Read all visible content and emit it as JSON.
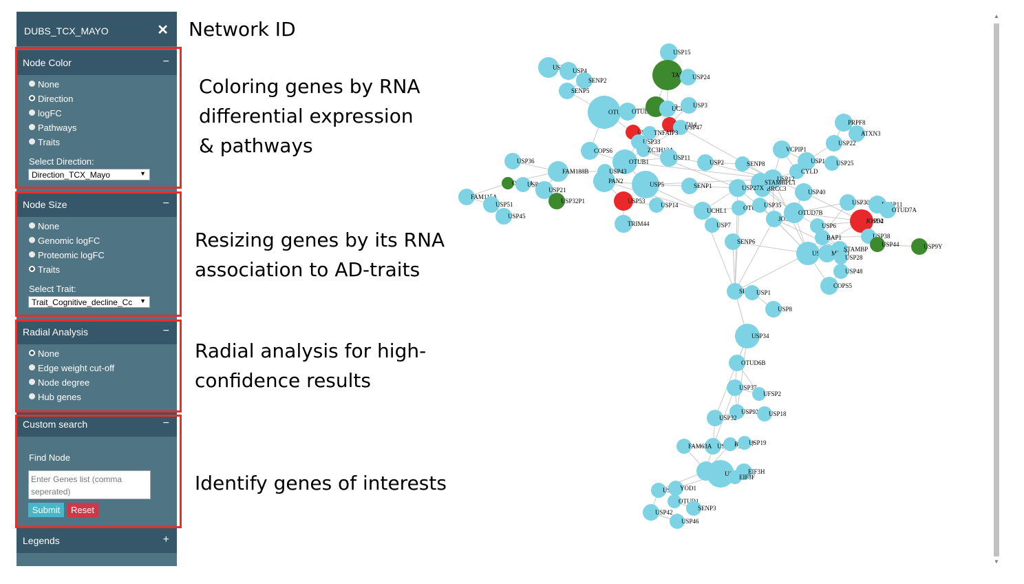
{
  "sidebar": {
    "title": "DUBS_TCX_MAYO",
    "close": "✕",
    "node_color": {
      "header": "Node Color",
      "toggle": "−",
      "options": [
        "None",
        "Direction",
        "logFC",
        "Pathways",
        "Traits"
      ],
      "selected": "Direction",
      "select_label": "Select Direction:",
      "select_value": "Direction_TCX_Mayo"
    },
    "node_size": {
      "header": "Node Size",
      "toggle": "−",
      "options": [
        "None",
        "Genomic logFC",
        "Proteomic logFC",
        "Traits"
      ],
      "selected": "Traits",
      "select_label": "Select Trait:",
      "select_value": "Trait_Cognitive_decline_Cc"
    },
    "radial": {
      "header": "Radial Analysis",
      "toggle": "−",
      "options": [
        "None",
        "Edge weight cut-off",
        "Node degree",
        "Hub genes"
      ],
      "selected": "None"
    },
    "custom_search": {
      "header": "Custom search",
      "toggle": "−",
      "find_label": "Find Node",
      "placeholder": "Enter Genes list (comma seperated)",
      "submit": "Submit",
      "reset": "Reset"
    },
    "legends": {
      "header": "Legends",
      "toggle": "+"
    }
  },
  "annotations": {
    "network_id": "Network ID",
    "coloring": "Coloring genes by RNA\ndifferential expression\n& pathways",
    "resizing": "Resizing genes by its RNA\nassociation to AD-traits",
    "radial": "Radial analysis for high-\nconfidence results",
    "identify": "Identify genes of interests"
  },
  "colors": {
    "node_default": "#7dd3e3",
    "node_up": "#e8282a",
    "node_down": "#3d8a2e",
    "sidebar": "#4f7585",
    "header": "#36566a",
    "highlight": "#e5302a"
  },
  "network": {
    "nodes": [
      {
        "label": "USP15",
        "c": "b"
      },
      {
        "label": "USP49",
        "c": "b"
      },
      {
        "label": "USP4",
        "c": "b"
      },
      {
        "label": "SENP2",
        "c": "b"
      },
      {
        "label": "SENP5",
        "c": "b"
      },
      {
        "label": "TAF1D",
        "c": "g"
      },
      {
        "label": "USP24",
        "c": "b"
      },
      {
        "label": "OTUD3",
        "c": "b"
      },
      {
        "label": "OTUD5",
        "c": "b"
      },
      {
        "label": "USP39",
        "c": "g"
      },
      {
        "label": "UCHL5",
        "c": "b"
      },
      {
        "label": "USP3",
        "c": "b"
      },
      {
        "label": "PSMD14",
        "c": "r"
      },
      {
        "label": "USP47",
        "c": "b"
      },
      {
        "label": "USP20",
        "c": "r"
      },
      {
        "label": "TNFAIP3",
        "c": "b"
      },
      {
        "label": "USP33",
        "c": "b"
      },
      {
        "label": "COPS6",
        "c": "b"
      },
      {
        "label": "ZC3H12A",
        "c": "b"
      },
      {
        "label": "USP11",
        "c": "b"
      },
      {
        "label": "OTUB1",
        "c": "b"
      },
      {
        "label": "USP2",
        "c": "b"
      },
      {
        "label": "SENP8",
        "c": "b"
      },
      {
        "label": "VCPIP1",
        "c": "b"
      },
      {
        "label": "PRPF8",
        "c": "b"
      },
      {
        "label": "ATXN3",
        "c": "b"
      },
      {
        "label": "USP22",
        "c": "b"
      },
      {
        "label": "USP10",
        "c": "b"
      },
      {
        "label": "USP25",
        "c": "b"
      },
      {
        "label": "CYLD",
        "c": "b"
      },
      {
        "label": "USP12",
        "c": "b"
      },
      {
        "label": "BRCC3",
        "c": "b"
      },
      {
        "label": "STAMBPL1",
        "c": "b"
      },
      {
        "label": "USP27X",
        "c": "b"
      },
      {
        "label": "SENP1",
        "c": "b"
      },
      {
        "label": "USP5",
        "c": "b"
      },
      {
        "label": "PAN2",
        "c": "b"
      },
      {
        "label": "USP43",
        "c": "b"
      },
      {
        "label": "USP36",
        "c": "b"
      },
      {
        "label": "FAM188B",
        "c": "b"
      },
      {
        "label": "OTUD4",
        "c": "g"
      },
      {
        "label": "USP13",
        "c": "b"
      },
      {
        "label": "USP21",
        "c": "b"
      },
      {
        "label": "FAM115A",
        "c": "b"
      },
      {
        "label": "USP51",
        "c": "b"
      },
      {
        "label": "USP45",
        "c": "b"
      },
      {
        "label": "USP32P1",
        "c": "g"
      },
      {
        "label": "USP53",
        "c": "r"
      },
      {
        "label": "USP14",
        "c": "b"
      },
      {
        "label": "TRIM44",
        "c": "b"
      },
      {
        "label": "UCHL1",
        "c": "b"
      },
      {
        "label": "USP7",
        "c": "b"
      },
      {
        "label": "OTUB2",
        "c": "b"
      },
      {
        "label": "USP35",
        "c": "b"
      },
      {
        "label": "USP40",
        "c": "b"
      },
      {
        "label": "JOSD1",
        "c": "b"
      },
      {
        "label": "OTUD7B",
        "c": "b"
      },
      {
        "label": "USP30",
        "c": "b"
      },
      {
        "label": "PARP11",
        "c": "b"
      },
      {
        "label": "OTUD7A",
        "c": "b"
      },
      {
        "label": "USP54",
        "c": "b"
      },
      {
        "label": "JOSD2",
        "c": "r"
      },
      {
        "label": "USP6",
        "c": "b"
      },
      {
        "label": "BAP1",
        "c": "b"
      },
      {
        "label": "USP38",
        "c": "b"
      },
      {
        "label": "USP44",
        "c": "g"
      },
      {
        "label": "USP9Y",
        "c": "g"
      },
      {
        "label": "STAMBP",
        "c": "b"
      },
      {
        "label": "USP16",
        "c": "b"
      },
      {
        "label": "MPND",
        "c": "b"
      },
      {
        "label": "USP28",
        "c": "b"
      },
      {
        "label": "USP48",
        "c": "b"
      },
      {
        "label": "COPS5",
        "c": "b"
      },
      {
        "label": "SENP6",
        "c": "b"
      },
      {
        "label": "SENP7",
        "c": "b"
      },
      {
        "label": "USP1",
        "c": "b"
      },
      {
        "label": "USP8",
        "c": "b"
      },
      {
        "label": "USP34",
        "c": "b"
      },
      {
        "label": "OTUD6B",
        "c": "b"
      },
      {
        "label": "USP37",
        "c": "b"
      },
      {
        "label": "UFSP2",
        "c": "b"
      },
      {
        "label": "USP9X",
        "c": "b"
      },
      {
        "label": "USP18",
        "c": "b"
      },
      {
        "label": "USP32",
        "c": "b"
      },
      {
        "label": "USP32P3",
        "c": "b"
      },
      {
        "label": "PSMD7",
        "c": "b"
      },
      {
        "label": "USP19",
        "c": "b"
      },
      {
        "label": "ZRANB1",
        "c": "b"
      },
      {
        "label": "USP31",
        "c": "b"
      },
      {
        "label": "EIF3H",
        "c": "b"
      },
      {
        "label": "EIF3F",
        "c": "b"
      },
      {
        "label": "USPL1",
        "c": "b"
      },
      {
        "label": "YOD1",
        "c": "b"
      },
      {
        "label": "OTUD1",
        "c": "b"
      },
      {
        "label": "SENP3",
        "c": "b"
      },
      {
        "label": "USP42",
        "c": "b"
      },
      {
        "label": "USP46",
        "c": "b"
      },
      {
        "label": "FAM63A",
        "c": "b"
      },
      {
        "label": "PSMD14b",
        "c": "b"
      }
    ]
  }
}
